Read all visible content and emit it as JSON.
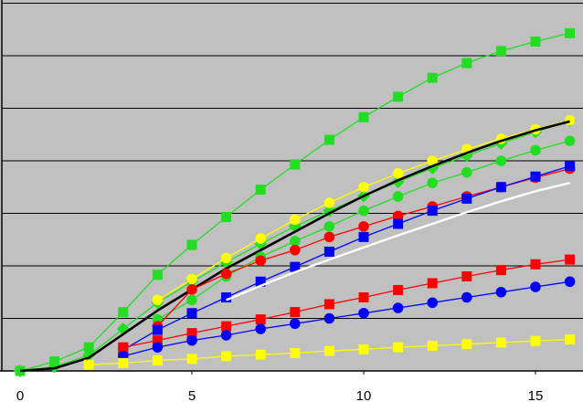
{
  "chart_data": {
    "type": "line",
    "title": "",
    "xlabel": "",
    "ylabel": "",
    "xlim": [
      -0.5,
      16.2
    ],
    "ylim": [
      0,
      7
    ],
    "x_ticks": [
      {
        "value": 0,
        "label": "0"
      },
      {
        "value": 5,
        "label": "5"
      },
      {
        "value": 10,
        "label": "10"
      },
      {
        "value": 15,
        "label": "15"
      }
    ],
    "y_gridlines": [
      1,
      2,
      3,
      4,
      5,
      6,
      7
    ],
    "y_tick_labels_visible": false,
    "legend": "none",
    "plot_background": "#c0c0c0",
    "series": [
      {
        "id": "green-squares",
        "color": "#22dd22",
        "marker": "square",
        "x": [
          0,
          1,
          2,
          3,
          4,
          5,
          6,
          7,
          8,
          9,
          10,
          11,
          12,
          13,
          14,
          15,
          16
        ],
        "y": [
          0,
          0.18,
          0.45,
          1.12,
          1.83,
          2.4,
          2.93,
          3.45,
          3.93,
          4.4,
          4.83,
          5.22,
          5.58,
          5.86,
          6.09,
          6.27,
          6.43
        ]
      },
      {
        "id": "green-diamonds",
        "color": "#22dd22",
        "marker": "diamond",
        "x": [
          0,
          1,
          2,
          3,
          4,
          5,
          6,
          7,
          8,
          9,
          10,
          11,
          12,
          13,
          14,
          15,
          16
        ],
        "y": [
          0,
          0.08,
          0.3,
          0.8,
          1.3,
          1.7,
          2.07,
          2.42,
          2.75,
          3.05,
          3.33,
          3.6,
          3.86,
          4.1,
          4.33,
          4.55,
          4.76
        ]
      },
      {
        "id": "yellow-circles",
        "color": "#ffff00",
        "marker": "circle",
        "x": [
          4,
          5,
          6,
          7,
          8,
          9,
          10,
          11,
          12,
          13,
          14,
          15,
          16
        ],
        "y": [
          1.35,
          1.75,
          2.15,
          2.52,
          2.88,
          3.2,
          3.5,
          3.76,
          4.0,
          4.22,
          4.42,
          4.6,
          4.77
        ]
      },
      {
        "id": "black-line",
        "color": "#000000",
        "marker": "none",
        "x": [
          0,
          1,
          2,
          3,
          4,
          5,
          6,
          7,
          8,
          9,
          10,
          11,
          12,
          13,
          14,
          15,
          16
        ],
        "y": [
          0,
          0.05,
          0.25,
          0.7,
          1.15,
          1.55,
          1.95,
          2.3,
          2.65,
          3.0,
          3.33,
          3.63,
          3.9,
          4.15,
          4.38,
          4.58,
          4.75
        ]
      },
      {
        "id": "green-circles",
        "color": "#22dd22",
        "marker": "circle",
        "x": [
          4,
          5,
          6,
          7,
          8,
          9,
          10,
          11,
          12,
          13,
          14,
          15,
          16
        ],
        "y": [
          0.98,
          1.35,
          1.8,
          2.17,
          2.47,
          2.75,
          3.05,
          3.32,
          3.58,
          3.78,
          4.0,
          4.2,
          4.38
        ]
      },
      {
        "id": "red-circles",
        "color": "#ff0000",
        "marker": "circle",
        "x": [
          4,
          5,
          6,
          7,
          8,
          9,
          10,
          11,
          12,
          13,
          14,
          15,
          16
        ],
        "y": [
          0.85,
          1.55,
          1.85,
          2.1,
          2.3,
          2.55,
          2.75,
          2.95,
          3.13,
          3.32,
          3.5,
          3.68,
          3.85
        ]
      },
      {
        "id": "blue-squares",
        "color": "#0000ff",
        "marker": "square",
        "x": [
          3,
          4,
          5,
          6,
          7,
          8,
          9,
          10,
          11,
          12,
          13,
          14,
          15,
          16
        ],
        "y": [
          0.4,
          0.78,
          1.1,
          1.4,
          1.7,
          1.98,
          2.27,
          2.55,
          2.8,
          3.05,
          3.28,
          3.5,
          3.7,
          3.9
        ]
      },
      {
        "id": "white-line",
        "color": "#ffffff",
        "marker": "none",
        "x": [
          6,
          7,
          8,
          9,
          10,
          11,
          12,
          13,
          14,
          15,
          16
        ],
        "y": [
          1.35,
          1.62,
          1.88,
          2.12,
          2.35,
          2.58,
          2.8,
          3.02,
          3.23,
          3.42,
          3.58
        ]
      },
      {
        "id": "red-squares",
        "color": "#ff0000",
        "marker": "square",
        "x": [
          3,
          4,
          5,
          6,
          7,
          8,
          9,
          10,
          11,
          12,
          13,
          14,
          15,
          16
        ],
        "y": [
          0.45,
          0.58,
          0.72,
          0.85,
          0.98,
          1.12,
          1.27,
          1.4,
          1.54,
          1.67,
          1.8,
          1.92,
          2.03,
          2.12
        ]
      },
      {
        "id": "blue-circles",
        "color": "#0000ff",
        "marker": "circle",
        "x": [
          3,
          4,
          5,
          6,
          7,
          8,
          9,
          10,
          11,
          12,
          13,
          14,
          15,
          16
        ],
        "y": [
          0.28,
          0.45,
          0.58,
          0.68,
          0.8,
          0.9,
          1.0,
          1.1,
          1.2,
          1.3,
          1.4,
          1.5,
          1.6,
          1.7
        ]
      },
      {
        "id": "yellow-squares",
        "color": "#ffff00",
        "marker": "square",
        "x": [
          2,
          3,
          4,
          5,
          6,
          7,
          8,
          9,
          10,
          11,
          12,
          13,
          14,
          15,
          16
        ],
        "y": [
          0.12,
          0.15,
          0.2,
          0.23,
          0.28,
          0.31,
          0.34,
          0.38,
          0.41,
          0.45,
          0.48,
          0.51,
          0.54,
          0.57,
          0.6
        ]
      }
    ]
  }
}
